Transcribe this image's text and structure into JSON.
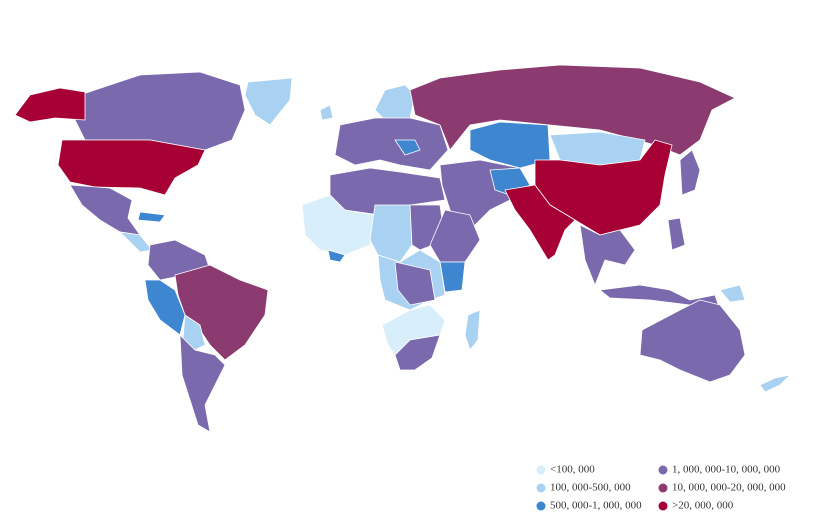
{
  "legend": {
    "items": [
      {
        "label": "<100, 000",
        "color": "#d9eefb"
      },
      {
        "label": "100, 000-500, 000",
        "color": "#a9d1f1"
      },
      {
        "label": "500, 000-1, 000, 000",
        "color": "#3f86d1"
      },
      {
        "label": "1, 000, 000-10, 000, 000",
        "color": "#7b69ae"
      },
      {
        "label": "10, 000, 000-20, 000, 000",
        "color": "#8b3b70"
      },
      {
        "label": ">20, 000, 000",
        "color": "#a60035"
      }
    ]
  }
}
